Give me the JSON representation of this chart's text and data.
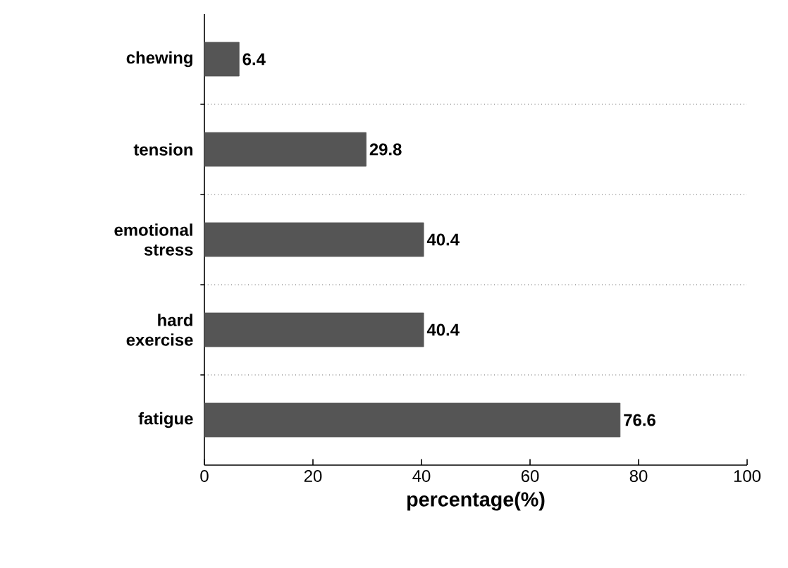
{
  "chart_data": {
    "type": "bar",
    "orientation": "horizontal",
    "xlabel": "percentage(%)",
    "categories": [
      "chewing",
      "tension",
      "emotional stress",
      "hard exercise",
      "fatigue"
    ],
    "values": [
      6.4,
      29.8,
      40.4,
      40.4,
      76.6
    ],
    "color": "#555555",
    "xlim": [
      0,
      100
    ],
    "xticks": [
      0,
      20,
      40,
      60,
      80,
      100
    ],
    "grid": "y",
    "data_labels": true
  }
}
